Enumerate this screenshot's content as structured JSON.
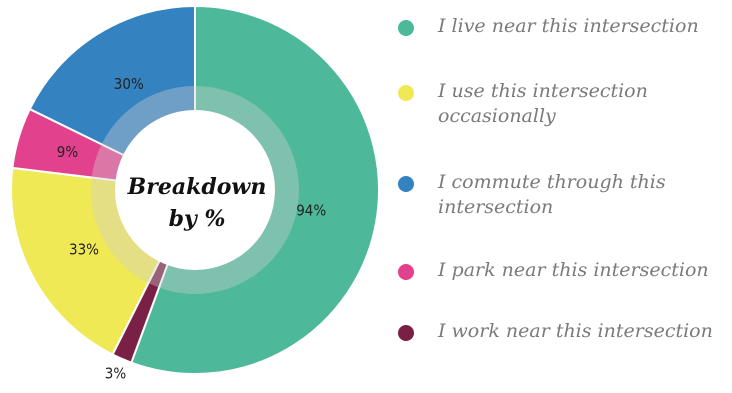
{
  "chart_data": {
    "type": "pie",
    "title": "",
    "center_label": [
      "Breakdown",
      "by %"
    ],
    "slices": [
      {
        "label": "I live near this intersection",
        "value": 94,
        "display": "94%",
        "color": "#4db89a"
      },
      {
        "label": "I work near this intersection",
        "value": 3,
        "display": "3%",
        "color": "#7a1f45"
      },
      {
        "label": "I use this intersection occasionally",
        "value": 33,
        "display": "33%",
        "color": "#f0e956"
      },
      {
        "label": "I park near this intersection",
        "value": 9,
        "display": "9%",
        "color": "#e2418e"
      },
      {
        "label": "I commute through this intersection",
        "value": 30,
        "display": "30%",
        "color": "#3582c0"
      }
    ],
    "legend": {
      "position": "right",
      "entries": [
        {
          "label": "I live near this intersection",
          "color": "#4db89a"
        },
        {
          "label": "I use this intersection occasionally",
          "color": "#f0e956"
        },
        {
          "label": "I commute through this intersection",
          "color": "#3582c0"
        },
        {
          "label": "I park near this intersection",
          "color": "#e2418e"
        },
        {
          "label": "I work near this intersection",
          "color": "#7a1f45"
        }
      ]
    }
  }
}
